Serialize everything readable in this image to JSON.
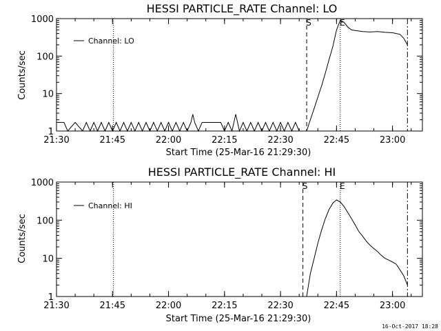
{
  "colors": {
    "background": "#ffffff",
    "foreground": "#000000"
  },
  "footer": {
    "timestamp": "16-Oct-2017 18:28"
  },
  "chart_data": [
    {
      "type": "line",
      "title": "HESSI PARTICLE_RATE Channel: LO",
      "xlabel": "Start Time (25-Mar-16 21:29:30)",
      "ylabel": "Counts/sec",
      "yscale": "log",
      "xlim": [
        "21:30",
        "23:08"
      ],
      "ylim": [
        1,
        1000
      ],
      "x_ticks": [
        "21:30",
        "21:45",
        "22:00",
        "22:15",
        "22:30",
        "22:45",
        "23:00"
      ],
      "y_ticks": [
        "1",
        "10",
        "100",
        "1000"
      ],
      "legend": {
        "position": "top-left",
        "label": "Channel: LO"
      },
      "markers": [
        {
          "time": "21:45:15",
          "style": "dotted",
          "label": ""
        },
        {
          "time": "22:37:00",
          "style": "dashed",
          "label": "S"
        },
        {
          "time": "22:46:00",
          "style": "dotted",
          "label": "E"
        },
        {
          "time": "23:04:00",
          "style": "dash-dot",
          "label": ""
        }
      ],
      "series": [
        {
          "name": "Channel: LO",
          "x": [
            "21:30",
            "21:32",
            "21:33",
            "21:35",
            "21:37",
            "21:38",
            "21:39",
            "21:40",
            "21:41",
            "21:42",
            "21:43",
            "21:44",
            "21:45",
            "21:46",
            "21:47",
            "21:48",
            "21:49",
            "21:50",
            "21:51",
            "21:52",
            "21:53",
            "21:54",
            "21:55",
            "21:56",
            "21:57",
            "21:58",
            "21:59",
            "22:00",
            "22:01",
            "22:02",
            "22:03",
            "22:04",
            "22:05",
            "22:06",
            "22:06:30",
            "22:07",
            "22:08",
            "22:09",
            "22:10",
            "22:12",
            "22:14",
            "22:15",
            "22:16",
            "22:17",
            "22:18",
            "22:19",
            "22:20",
            "22:21",
            "22:22",
            "22:23",
            "22:24",
            "22:25",
            "22:26",
            "22:27",
            "22:28",
            "22:29",
            "22:30",
            "22:31",
            "22:32",
            "22:33",
            "22:34",
            "22:35",
            "22:36",
            "22:37",
            "22:38",
            "22:39",
            "22:40",
            "22:41",
            "22:42",
            "22:43",
            "22:44",
            "22:45",
            "22:46",
            "22:47",
            "22:48",
            "22:49",
            "22:50",
            "22:52",
            "22:54",
            "22:56",
            "22:58",
            "23:00",
            "23:01",
            "23:02",
            "23:03",
            "23:04"
          ],
          "values": [
            1.7,
            1.7,
            1,
            1.7,
            1,
            1.7,
            1,
            1.7,
            1,
            1.7,
            1,
            1.7,
            1,
            1.7,
            1,
            1.7,
            1,
            1.7,
            1,
            1.7,
            1,
            1.7,
            1,
            1.7,
            1,
            1.7,
            1,
            1.7,
            1,
            1.7,
            1,
            1.7,
            1,
            1.7,
            2.8,
            1.7,
            1,
            1.7,
            1.7,
            1.7,
            1.7,
            1,
            1.7,
            1,
            2.8,
            1,
            1.7,
            1,
            1.7,
            1,
            1.7,
            1,
            1.7,
            1,
            1.7,
            1,
            1.7,
            1,
            1.7,
            1,
            1.7,
            1,
            1,
            1,
            2,
            4,
            8,
            16,
            35,
            80,
            180,
            500,
            900,
            800,
            600,
            500,
            480,
            450,
            440,
            450,
            430,
            420,
            400,
            380,
            300,
            200
          ]
        }
      ]
    },
    {
      "type": "line",
      "title": "HESSI PARTICLE_RATE Channel: HI",
      "xlabel": "Start Time (25-Mar-16 21:29:30)",
      "ylabel": "Counts/sec",
      "yscale": "log",
      "xlim": [
        "21:30",
        "23:08"
      ],
      "ylim": [
        1,
        1000
      ],
      "x_ticks": [
        "21:30",
        "21:45",
        "22:00",
        "22:15",
        "22:30",
        "22:45",
        "23:00"
      ],
      "y_ticks": [
        "1",
        "10",
        "100",
        "1000"
      ],
      "legend": {
        "position": "top-left",
        "label": "Channel: HI"
      },
      "markers": [
        {
          "time": "21:45:15",
          "style": "dotted",
          "label": ""
        },
        {
          "time": "22:36:00",
          "style": "dashed",
          "label": "S"
        },
        {
          "time": "22:46:00",
          "style": "dotted",
          "label": "E"
        },
        {
          "time": "23:04:00",
          "style": "dash-dot",
          "label": ""
        }
      ],
      "series": [
        {
          "name": "Channel: HI",
          "x": [
            "22:37:00",
            "22:37:30",
            "22:38",
            "22:39",
            "22:40",
            "22:41",
            "22:42",
            "22:43",
            "22:44",
            "22:45",
            "22:46",
            "22:47",
            "22:48",
            "22:49",
            "22:50",
            "22:51",
            "22:52",
            "22:53",
            "22:54",
            "22:55",
            "22:56",
            "22:57",
            "22:58",
            "22:59",
            "23:00",
            "23:01",
            "23:02",
            "23:03",
            "23:04"
          ],
          "values": [
            1,
            2,
            4,
            10,
            25,
            55,
            110,
            190,
            280,
            340,
            300,
            230,
            160,
            110,
            75,
            50,
            38,
            28,
            22,
            18,
            15,
            12,
            10,
            9,
            8,
            7,
            5,
            3.5,
            2
          ]
        }
      ]
    }
  ]
}
